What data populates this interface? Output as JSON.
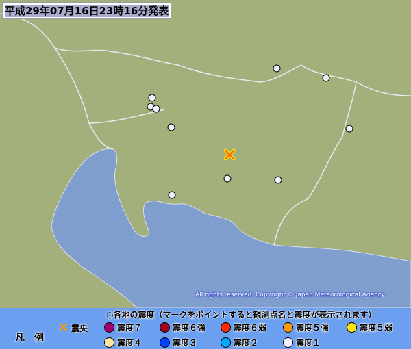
{
  "header": {
    "title": "平成29年07月16日23時16分発表"
  },
  "map": {
    "copyright": "All rights reserved. Copyright © Japan Meteorological Agency",
    "colors": {
      "land": "#a4b07c",
      "sea": "#82a2d2",
      "border": "#e8ecf0"
    },
    "epicenter": {
      "icon": "x-mark-icon",
      "color": "#ff9900"
    },
    "stations": [
      {
        "intensity": "震度1"
      },
      {
        "intensity": "震度1"
      },
      {
        "intensity": "震度1"
      },
      {
        "intensity": "震度1"
      },
      {
        "intensity": "震度1"
      },
      {
        "intensity": "震度1"
      },
      {
        "intensity": "震度1"
      },
      {
        "intensity": "震度1"
      },
      {
        "intensity": "震度1"
      },
      {
        "intensity": "震度1"
      }
    ]
  },
  "legend": {
    "label": "凡　例",
    "heading": "○各地の震度（マークをポイントすると観測点名と震度が表示されます）",
    "epicenter_label": "震央",
    "items": [
      {
        "label": "震度７",
        "color": "#a0006a"
      },
      {
        "label": "震度６強",
        "color": "#a00020"
      },
      {
        "label": "震度６弱",
        "color": "#ff2800"
      },
      {
        "label": "震度５強",
        "color": "#ff9900"
      },
      {
        "label": "震度５弱",
        "color": "#ffe600"
      },
      {
        "label": "震度４",
        "color": "#ffe6a0"
      },
      {
        "label": "震度３",
        "color": "#0040ff"
      },
      {
        "label": "震度２",
        "color": "#00aaff"
      },
      {
        "label": "震度１",
        "color": "#f2f2ff"
      }
    ]
  }
}
